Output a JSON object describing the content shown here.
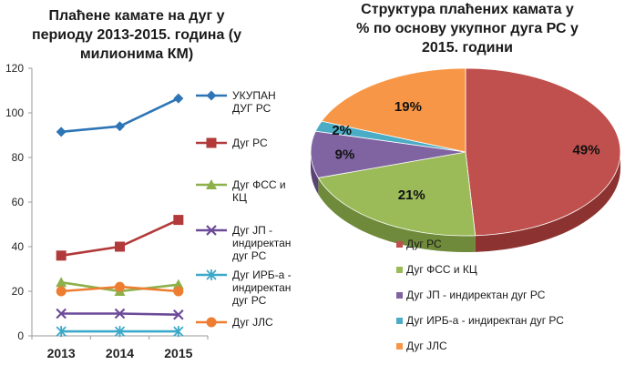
{
  "chart_data": [
    {
      "type": "line",
      "title_lines": [
        "Плаћене камате на дуг у",
        "периоду 2013-2015. година (у",
        "милионима КМ)"
      ],
      "categories": [
        "2013",
        "2014",
        "2015"
      ],
      "ylim": [
        0,
        120
      ],
      "yticks": [
        "0",
        "20",
        "40",
        "60",
        "80",
        "100",
        "120"
      ],
      "grid": false,
      "legend_position": "right",
      "series": [
        {
          "name": "УКУПАН ДУГ РС",
          "name_lines": [
            "УКУПАН",
            "ДУГ РС"
          ],
          "values": [
            91.5,
            94,
            106.5
          ],
          "color": "#2E75B6",
          "marker": "diamond"
        },
        {
          "name": "Дуг РС",
          "name_lines": [
            "Дуг РС"
          ],
          "values": [
            36,
            40,
            52
          ],
          "color": "#B23A3A",
          "marker": "square"
        },
        {
          "name": "Дуг ФСС и КЦ",
          "name_lines": [
            "Дуг ФСС и",
            "КЦ"
          ],
          "values": [
            24,
            20,
            23
          ],
          "color": "#8DB04A",
          "marker": "triangle"
        },
        {
          "name": "Дуг ЈП - индиректан дуг РС",
          "name_lines": [
            "Дуг ЈП -",
            "индиректан",
            "дуг РС"
          ],
          "values": [
            10,
            10,
            9.5
          ],
          "color": "#6B4A98",
          "marker": "x"
        },
        {
          "name": "Дуг ИРБ-а - индиректан дуг РС",
          "name_lines": [
            "Дуг ИРБ-а -",
            "индиректан",
            "дуг РС"
          ],
          "values": [
            2,
            2,
            2
          ],
          "color": "#3BA9C9",
          "marker": "star"
        },
        {
          "name": "Дуг ЈЛС",
          "name_lines": [
            "Дуг ЈЛС"
          ],
          "values": [
            20,
            22,
            20
          ],
          "color": "#ED7D31",
          "marker": "circle"
        }
      ]
    },
    {
      "type": "pie",
      "title_lines": [
        "Структура плаћених камата у",
        "% по основу укупног дуга РС у",
        "2015. години"
      ],
      "legend_position": "bottom",
      "slices": [
        {
          "label": "Дуг РС",
          "value": 49,
          "display": "49%",
          "color": "#C0504D",
          "dark": "#8C3331"
        },
        {
          "label": "Дуг ФСС и КЦ",
          "value": 21,
          "display": "21%",
          "color": "#9BBB59",
          "dark": "#6E8A3A"
        },
        {
          "label": "Дуг ЈП - индиректан дуг РС",
          "value": 9,
          "display": "9%",
          "color": "#8064A2",
          "dark": "#5A4474"
        },
        {
          "label": "Дуг ИРБ-а - индиректан дуг РС",
          "value": 2,
          "display": "2%",
          "color": "#4BACC6",
          "dark": "#2F7D93"
        },
        {
          "label": "Дуг ЈЛС",
          "value": 19,
          "display": "19%",
          "color": "#F79646",
          "dark": "#B86A2A"
        }
      ]
    }
  ]
}
